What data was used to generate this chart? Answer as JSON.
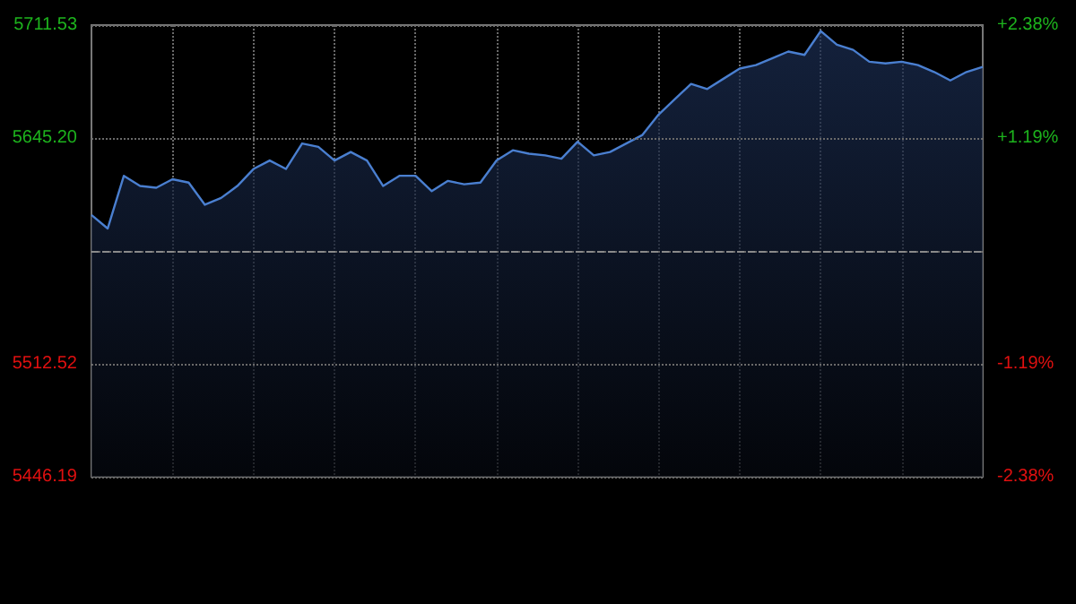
{
  "chart_data": {
    "type": "area",
    "categories": [
      null,
      null,
      null,
      null,
      null,
      null,
      null,
      null,
      null,
      null,
      null,
      null,
      null,
      null,
      null,
      null,
      null,
      null,
      null,
      null,
      null,
      null,
      null,
      null,
      null,
      null,
      null,
      null,
      null,
      null,
      null,
      null,
      null,
      null,
      null,
      null,
      null,
      null,
      null,
      null,
      null,
      null,
      null,
      null,
      null,
      null,
      null,
      null,
      null,
      null,
      null,
      null,
      null,
      null,
      null,
      null
    ],
    "series": [
      {
        "color": "#4a7fd0",
        "values": [
          5600,
          5592,
          5623,
          5617,
          5616,
          5621,
          5619,
          5606,
          5610,
          5617,
          5627,
          5632,
          5627,
          5642,
          5640,
          5632,
          5637,
          5632,
          5617,
          5623,
          5623,
          5614,
          5620,
          5618,
          5619,
          5632,
          5638,
          5636,
          5635,
          5633,
          5643,
          5635,
          5637,
          5642,
          5647,
          5659,
          5668,
          5677,
          5674,
          5680,
          5686,
          5688,
          5692,
          5696,
          5694,
          5708,
          5700,
          5697,
          5690,
          5689,
          5690,
          5688,
          5684,
          5679,
          5684,
          5687
        ]
      }
    ],
    "ylim": [
      5446.19,
      5711.53
    ],
    "yticks": [
      5446.19,
      5512.52,
      {
        "value": 5578.86,
        "label": null
      },
      {
        "value": 5645.2,
        "label": "5645.20"
      },
      5711.53
    ],
    "y2lim": [
      -2.38,
      2.38
    ],
    "y2ticks": [
      {
        "value": -2.38,
        "label": "-2.38%"
      },
      {
        "value": -1.19,
        "label": "-1.19%"
      },
      {
        "value": 0,
        "label": null
      },
      {
        "value": 1.19,
        "label": "+1.19%"
      },
      {
        "value": 2.38,
        "label": "+2.38%"
      }
    ],
    "ref_lines": [
      {
        "axis": "y",
        "value": 5578.86,
        "line_style": "dashed"
      }
    ],
    "grid": true,
    "tick_labels": "y",
    "line_style": "solid"
  }
}
